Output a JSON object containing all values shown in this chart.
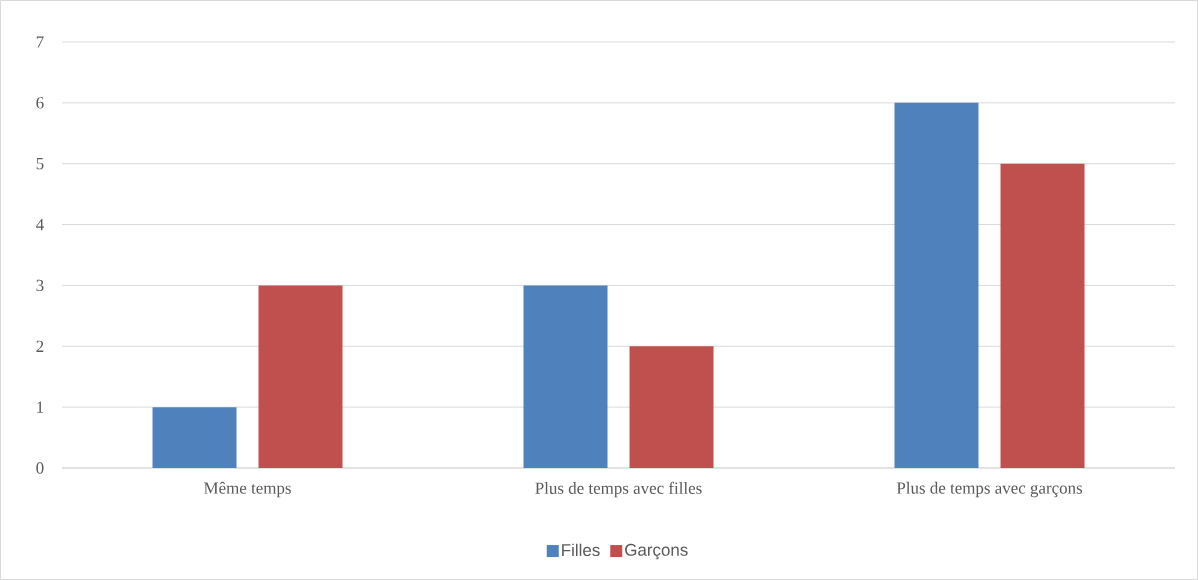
{
  "chart_data": {
    "type": "bar",
    "categories": [
      "Même temps",
      "Plus de temps avec filles",
      "Plus de temps avec garçons"
    ],
    "series": [
      {
        "name": "Filles",
        "color": "#4f81bd",
        "values": [
          1,
          3,
          6
        ]
      },
      {
        "name": "Garçons",
        "color": "#c0504d",
        "values": [
          3,
          2,
          5
        ]
      }
    ],
    "ylim": [
      0,
      7
    ],
    "yticks": [
      0,
      1,
      2,
      3,
      4,
      5,
      6,
      7
    ],
    "grid": "y",
    "legend": "bottom"
  }
}
